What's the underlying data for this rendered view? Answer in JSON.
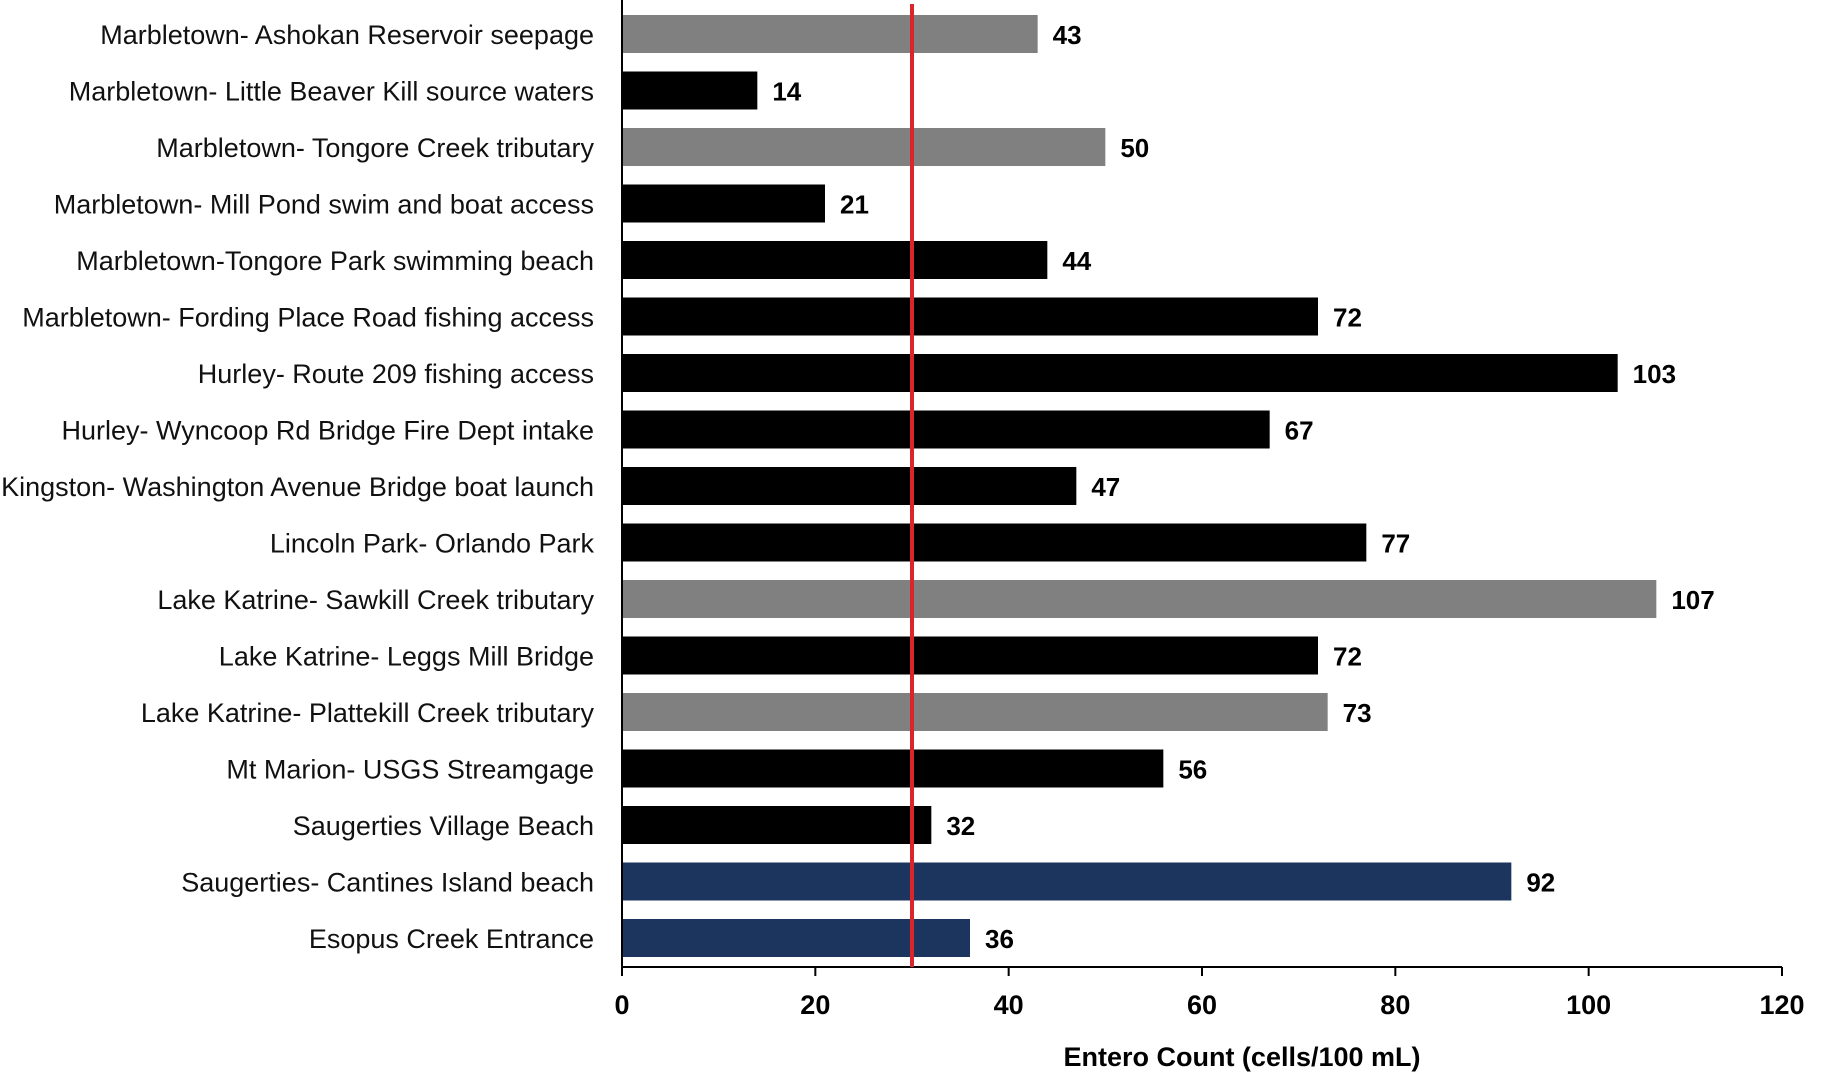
{
  "chart_data": {
    "type": "bar",
    "orientation": "horizontal",
    "title": "",
    "xlabel": "Entero Count (cells/100 mL)",
    "ylabel": "",
    "xlim": [
      0,
      120
    ],
    "xticks": [
      0,
      20,
      40,
      60,
      80,
      100,
      120
    ],
    "grid": false,
    "legend": "none",
    "reference_line": {
      "value": 30,
      "color": "#d9252b"
    },
    "colors": {
      "gray": "#808080",
      "black": "#000000",
      "navy": "#1c355e"
    },
    "bars": [
      {
        "category": "Marbletown- Ashokan Reservoir seepage",
        "value": 43,
        "label": "43",
        "color": "#808080"
      },
      {
        "category": "Marbletown- Little Beaver Kill source waters",
        "value": 14,
        "label": "14",
        "color": "#000000"
      },
      {
        "category": "Marbletown- Tongore Creek tributary",
        "value": 50,
        "label": "50",
        "color": "#808080"
      },
      {
        "category": "Marbletown- Mill Pond swim and boat access",
        "value": 21,
        "label": "21",
        "color": "#000000"
      },
      {
        "category": "Marbletown-Tongore Park swimming beach",
        "value": 44,
        "label": "44",
        "color": "#000000"
      },
      {
        "category": "Marbletown- Fording Place Road fishing access",
        "value": 72,
        "label": "72",
        "color": "#000000"
      },
      {
        "category": "Hurley- Route 209 fishing access",
        "value": 103,
        "label": "103",
        "color": "#000000"
      },
      {
        "category": "Hurley- Wyncoop Rd Bridge Fire Dept intake",
        "value": 67,
        "label": "67",
        "color": "#000000"
      },
      {
        "category": "Kingston- Washington Avenue Bridge boat launch",
        "value": 47,
        "label": "47",
        "color": "#000000"
      },
      {
        "category": "Lincoln Park- Orlando Park",
        "value": 77,
        "label": "77",
        "color": "#000000"
      },
      {
        "category": "Lake Katrine- Sawkill Creek tributary",
        "value": 107,
        "label": "107",
        "color": "#808080"
      },
      {
        "category": "Lake Katrine- Leggs Mill Bridge",
        "value": 72,
        "label": "72",
        "color": "#000000"
      },
      {
        "category": "Lake Katrine- Plattekill Creek tributary",
        "value": 73,
        "label": "73",
        "color": "#808080"
      },
      {
        "category": "Mt Marion- USGS Streamgage",
        "value": 56,
        "label": "56",
        "color": "#000000"
      },
      {
        "category": "Saugerties Village Beach",
        "value": 32,
        "label": "32",
        "color": "#000000"
      },
      {
        "category": "Saugerties- Cantines Island beach",
        "value": 92,
        "label": "92",
        "color": "#1c355e"
      },
      {
        "category": "Esopus Creek Entrance",
        "value": 36,
        "label": "36",
        "color": "#1c355e"
      }
    ]
  }
}
